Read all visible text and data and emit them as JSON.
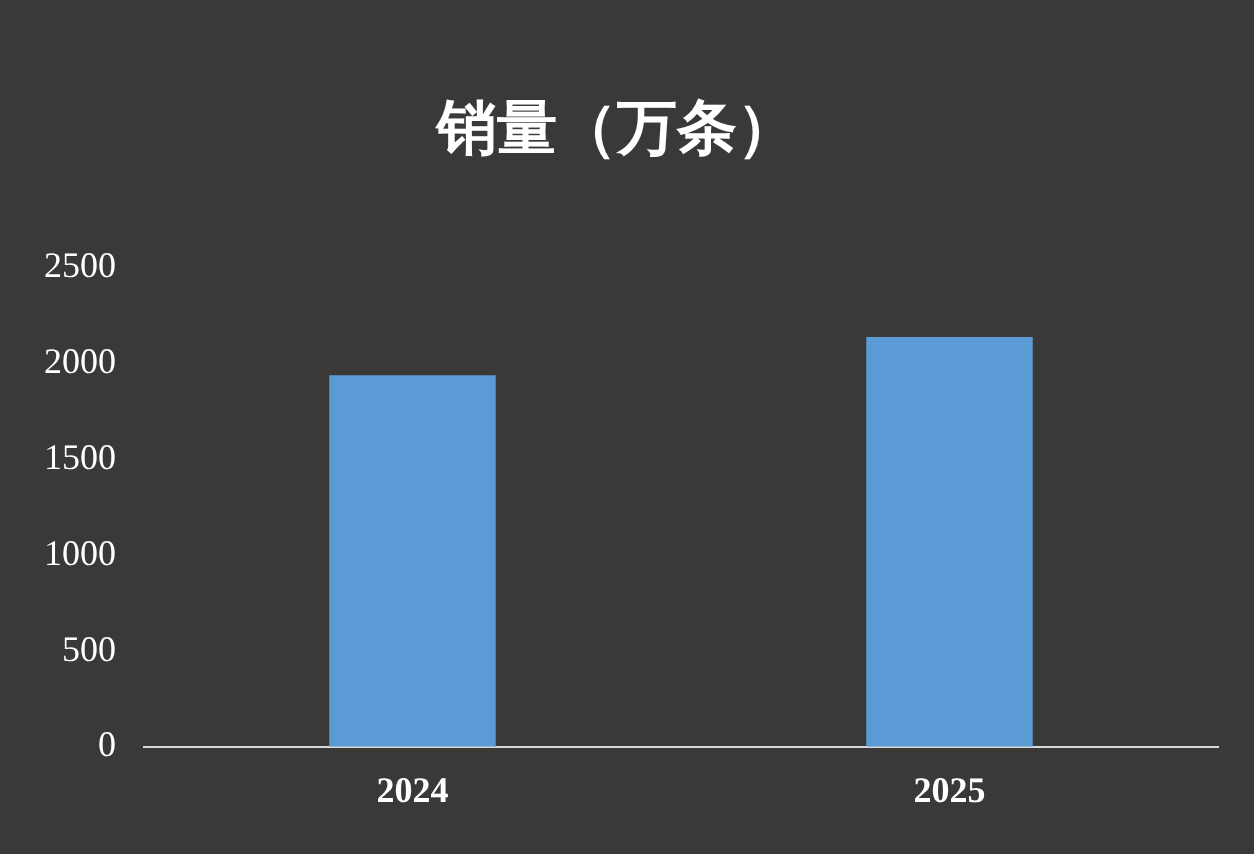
{
  "chart_data": {
    "type": "bar",
    "title": "销量（万条）",
    "categories": [
      "2024",
      "2025"
    ],
    "values": [
      1940,
      2140
    ],
    "color": "#5b9bd5",
    "ylim": [
      0,
      2500
    ],
    "yticks": [
      0,
      500,
      1000,
      1500,
      2000,
      2500
    ],
    "grid": false,
    "legend": false
  }
}
